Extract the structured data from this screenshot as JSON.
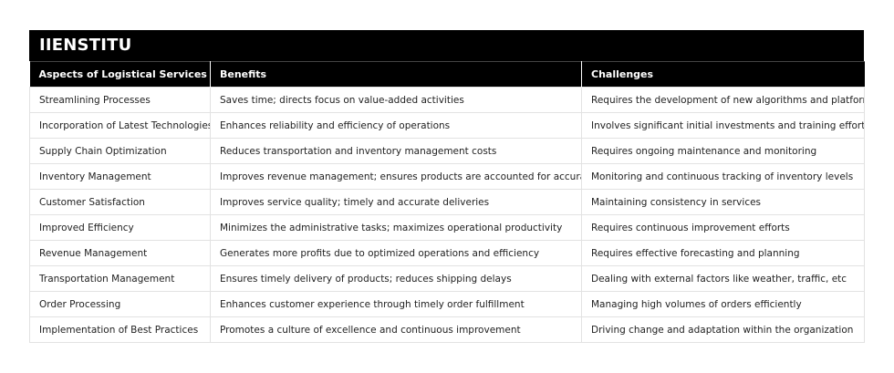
{
  "brand": "IIENSTITU",
  "table": {
    "headers": [
      "Aspects of Logistical Services",
      "Benefits",
      "Challenges"
    ],
    "rows": [
      [
        "Streamlining Processes",
        "Saves time; directs focus on value-added activities",
        "Requires the development of new algorithms and platforms"
      ],
      [
        "Incorporation of Latest Technologies",
        "Enhances reliability and efficiency of operations",
        "Involves significant initial investments and training efforts"
      ],
      [
        "Supply Chain Optimization",
        "Reduces transportation and inventory management costs",
        "Requires ongoing maintenance and monitoring"
      ],
      [
        "Inventory Management",
        "Improves revenue management; ensures products are accounted for accurately",
        "Monitoring and continuous tracking of inventory levels"
      ],
      [
        "Customer Satisfaction",
        "Improves service quality; timely and accurate deliveries",
        "Maintaining consistency in services"
      ],
      [
        "Improved Efficiency",
        "Minimizes the administrative tasks; maximizes operational productivity",
        "Requires continuous improvement efforts"
      ],
      [
        "Revenue Management",
        "Generates more profits due to optimized operations and efficiency",
        "Requires effective forecasting and planning"
      ],
      [
        "Transportation Management",
        "Ensures timely delivery of products; reduces shipping delays",
        "Dealing with external factors like weather, traffic, etc"
      ],
      [
        "Order Processing",
        "Enhances customer experience through timely order fulfillment",
        "Managing high volumes of orders efficiently"
      ],
      [
        "Implementation of Best Practices",
        "Promotes a culture of excellence and continuous improvement",
        "Driving change and adaptation within the organization"
      ]
    ]
  }
}
